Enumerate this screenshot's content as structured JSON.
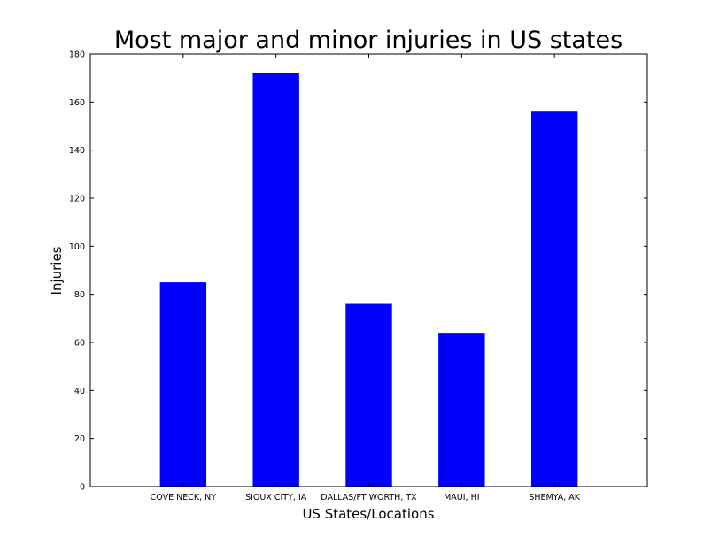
{
  "chart_data": {
    "type": "bar",
    "title": "Most major and minor injuries in US states",
    "xlabel": "US States/Locations",
    "ylabel": "Injuries",
    "categories": [
      "COVE NECK, NY",
      "SIOUX CITY, IA",
      "DALLAS/FT WORTH, TX",
      "MAUI, HI",
      "SHEMYA, AK"
    ],
    "values": [
      85,
      172,
      76,
      64,
      156
    ],
    "ylim": [
      0,
      180
    ],
    "yticks": [
      0,
      20,
      40,
      60,
      80,
      100,
      120,
      140,
      160,
      180
    ],
    "grid": false,
    "bar_color": "#0000ff"
  }
}
